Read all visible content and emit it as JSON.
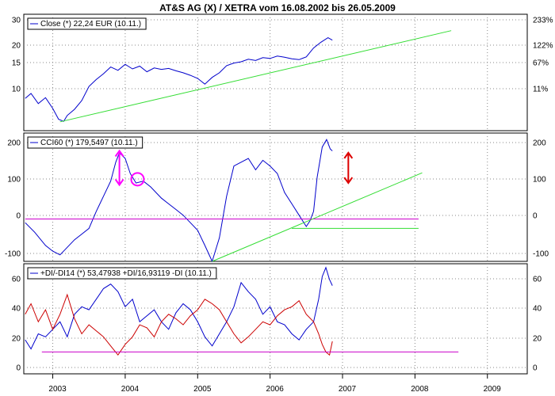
{
  "title": "AT&S AG (X) / XETRA vom 16.08.2002 bis 26.05.2009",
  "chart_data": [
    {
      "type": "line",
      "legend": "Close (*) 22,24 EUR (10.11.)",
      "scale": "log",
      "ylim": [
        6,
        32
      ],
      "grid": true,
      "left_ticks": [
        "30",
        "20",
        "15",
        "10"
      ],
      "right_ticks": [
        "233%",
        "122%",
        "67%",
        "11%"
      ],
      "series": [
        {
          "color": "#0000cc",
          "x": [
            2002.62,
            2002.7,
            2002.8,
            2002.9,
            2003.0,
            2003.08,
            2003.15,
            2003.2,
            2003.3,
            2003.4,
            2003.5,
            2003.6,
            2003.7,
            2003.8,
            2003.9,
            2004.0,
            2004.1,
            2004.2,
            2004.3,
            2004.4,
            2004.5,
            2004.6,
            2004.7,
            2004.8,
            2004.9,
            2005.0,
            2005.1,
            2005.2,
            2005.3,
            2005.4,
            2005.5,
            2005.6,
            2005.7,
            2005.8,
            2005.9,
            2006.0,
            2006.1,
            2006.2,
            2006.3,
            2006.4,
            2006.5,
            2006.6,
            2006.7,
            2006.8,
            2006.86
          ],
          "y": [
            9.5,
            10.2,
            8.8,
            9.6,
            8.2,
            7.0,
            6.8,
            7.4,
            8.1,
            9.2,
            11.3,
            12.5,
            13.6,
            15.0,
            14.3,
            15.6,
            14.6,
            15.2,
            14.0,
            14.8,
            14.5,
            14.7,
            14.2,
            13.8,
            13.3,
            12.7,
            11.7,
            12.9,
            13.8,
            15.3,
            15.9,
            16.2,
            16.8,
            16.5,
            17.2,
            17.0,
            17.6,
            17.3,
            16.9,
            16.7,
            17.4,
            19.8,
            21.5,
            23.0,
            22.2
          ]
        },
        {
          "color": "#33dd33",
          "x": [
            2003.1,
            2008.5
          ],
          "y": [
            6.75,
            25.5
          ]
        }
      ]
    },
    {
      "type": "line",
      "legend": "CCI60 (*) 179,5497 (10.11.)",
      "ylim": [
        -110,
        225
      ],
      "grid": true,
      "left_ticks": [
        "200",
        "100",
        "0",
        "-100"
      ],
      "right_ticks": [
        "200",
        "100",
        "0",
        "-100"
      ],
      "series": [
        {
          "color": "#0000cc",
          "x": [
            2002.62,
            2002.75,
            2002.9,
            2003.0,
            2003.1,
            2003.2,
            2003.3,
            2003.4,
            2003.5,
            2003.6,
            2003.7,
            2003.8,
            2003.87,
            2003.92,
            2004.0,
            2004.07,
            2004.15,
            2004.25,
            2004.35,
            2004.5,
            2004.6,
            2004.7,
            2004.8,
            2004.9,
            2005.0,
            2005.1,
            2005.2,
            2005.3,
            2005.4,
            2005.5,
            2005.6,
            2005.7,
            2005.8,
            2005.9,
            2006.0,
            2006.1,
            2006.2,
            2006.3,
            2006.4,
            2006.5,
            2006.55,
            2006.6,
            2006.65,
            2006.72,
            2006.78,
            2006.83,
            2006.86
          ],
          "y": [
            -10,
            -35,
            -70,
            -85,
            -95,
            -75,
            -55,
            -40,
            -25,
            20,
            60,
            100,
            150,
            175,
            160,
            120,
            95,
            100,
            85,
            55,
            40,
            25,
            10,
            -10,
            -30,
            -70,
            -112,
            -50,
            60,
            140,
            150,
            160,
            130,
            155,
            140,
            120,
            70,
            40,
            10,
            -20,
            -5,
            20,
            110,
            190,
            210,
            185,
            180
          ]
        },
        {
          "color": "#cc00cc",
          "x": [
            2002.62,
            2008.05
          ],
          "y": [
            0,
            0
          ]
        },
        {
          "color": "#33dd33",
          "x": [
            2005.2,
            2008.1
          ],
          "y": [
            -112,
            122
          ]
        },
        {
          "color": "#33dd33",
          "x": [
            2006.3,
            2008.05
          ],
          "y": [
            -25,
            -25
          ]
        }
      ],
      "annotations": [
        {
          "kind": "arrow",
          "color": "#ff00ff",
          "x": 2003.92,
          "y1": 180,
          "y2": 90
        },
        {
          "kind": "circle",
          "color": "#ff00ff",
          "x": 2004.17,
          "y": 105
        },
        {
          "kind": "arrow",
          "color": "#dd0000",
          "x": 2007.08,
          "y1": 175,
          "y2": 95
        }
      ]
    },
    {
      "type": "line",
      "legend": "+DI/-DI14 (*) 53,47938 +DI/16,93119 -DI (10.11.)",
      "ylim": [
        -4,
        68
      ],
      "grid": true,
      "left_ticks": [
        "60",
        "40",
        "20",
        "0"
      ],
      "right_ticks": [
        "60",
        "40",
        "20",
        "0"
      ],
      "series": [
        {
          "name": "+DI",
          "color": "#0000cc",
          "x": [
            2002.62,
            2002.7,
            2002.8,
            2002.9,
            2003.0,
            2003.1,
            2003.2,
            2003.3,
            2003.4,
            2003.5,
            2003.6,
            2003.7,
            2003.8,
            2003.9,
            2004.0,
            2004.1,
            2004.2,
            2004.3,
            2004.4,
            2004.5,
            2004.6,
            2004.7,
            2004.8,
            2004.9,
            2005.0,
            2005.1,
            2005.2,
            2005.3,
            2005.4,
            2005.5,
            2005.6,
            2005.7,
            2005.8,
            2005.9,
            2006.0,
            2006.1,
            2006.2,
            2006.3,
            2006.4,
            2006.5,
            2006.6,
            2006.67,
            2006.72,
            2006.77,
            2006.82,
            2006.86
          ],
          "y": [
            18,
            12,
            22,
            20,
            25,
            30,
            20,
            35,
            40,
            38,
            45,
            52,
            55,
            50,
            40,
            45,
            30,
            34,
            38,
            30,
            25,
            36,
            42,
            38,
            30,
            20,
            14,
            22,
            30,
            40,
            56,
            50,
            45,
            35,
            40,
            30,
            28,
            22,
            18,
            25,
            30,
            45,
            60,
            66,
            58,
            54
          ]
        },
        {
          "name": "-DI",
          "color": "#cc0000",
          "x": [
            2002.62,
            2002.7,
            2002.8,
            2002.9,
            2003.0,
            2003.1,
            2003.2,
            2003.3,
            2003.4,
            2003.5,
            2003.6,
            2003.7,
            2003.8,
            2003.9,
            2004.0,
            2004.1,
            2004.2,
            2004.3,
            2004.4,
            2004.5,
            2004.6,
            2004.7,
            2004.8,
            2004.9,
            2005.0,
            2005.1,
            2005.2,
            2005.3,
            2005.4,
            2005.5,
            2005.6,
            2005.7,
            2005.8,
            2005.9,
            2006.0,
            2006.1,
            2006.2,
            2006.3,
            2006.4,
            2006.5,
            2006.6,
            2006.67,
            2006.72,
            2006.77,
            2006.82,
            2006.86
          ],
          "y": [
            35,
            42,
            30,
            38,
            25,
            35,
            48,
            32,
            22,
            28,
            24,
            20,
            14,
            8,
            15,
            20,
            28,
            26,
            20,
            30,
            35,
            32,
            28,
            34,
            38,
            45,
            42,
            38,
            30,
            22,
            16,
            20,
            25,
            30,
            28,
            34,
            38,
            40,
            44,
            35,
            30,
            22,
            15,
            10,
            8,
            17
          ]
        },
        {
          "name": "",
          "color": "#cc00cc",
          "x": [
            2002.85,
            2008.6
          ],
          "y": [
            10,
            10
          ]
        }
      ]
    }
  ],
  "x_axis": {
    "min": 2002.6,
    "max": 2009.55,
    "year_labels": [
      "2003",
      "2004",
      "2005",
      "2006",
      "2007",
      "2008",
      "2009"
    ],
    "year_positions": [
      2003,
      2004,
      2005,
      2006,
      2007,
      2008,
      2009
    ]
  }
}
